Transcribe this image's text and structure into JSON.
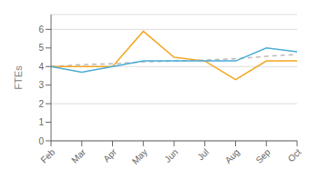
{
  "chart_data": {
    "type": "line",
    "ylabel": "FTEs",
    "categories": [
      "Feb",
      "Mar",
      "Apr",
      "May",
      "Jun",
      "Jul",
      "Aug",
      "Sep",
      "Oct"
    ],
    "series": [
      {
        "color": "#BBBBBB",
        "line_style": "dashed",
        "values": [
          4.0,
          4.1,
          4.15,
          4.25,
          4.3,
          4.35,
          4.42,
          4.55,
          4.65
        ]
      },
      {
        "color": "#F5A623",
        "line_style": "solid",
        "values": [
          4.0,
          4.0,
          4.0,
          5.9,
          4.5,
          4.3,
          3.3,
          4.3,
          4.3
        ]
      },
      {
        "color": "#4BACD6",
        "line_style": "solid",
        "values": [
          4.0,
          3.7,
          4.0,
          4.3,
          4.3,
          4.3,
          4.3,
          5.0,
          4.8
        ]
      }
    ],
    "ylim": [
      0,
      6.8
    ],
    "yticks": [
      0,
      1,
      2,
      3,
      4,
      5,
      6
    ],
    "grid": "y"
  }
}
